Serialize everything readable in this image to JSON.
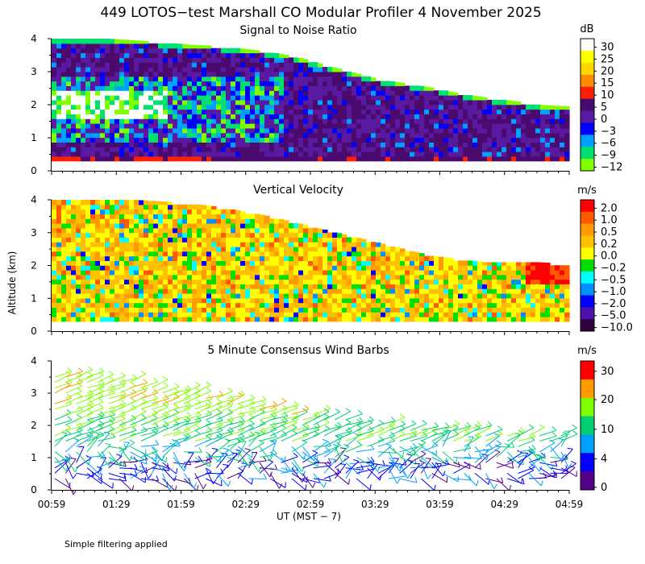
{
  "header": {
    "title": "449 LOTOS−test Marshall CO Modular Profiler  4 November 2025"
  },
  "footer": {
    "note": "Simple filtering applied"
  },
  "axes": {
    "ylabel": "Altitude (km)",
    "xlabel": "UT  (MST − 7)"
  },
  "chart_data": [
    {
      "type": "heatmap",
      "title": "Signal to Noise Ratio",
      "xlabel": "UT  (MST − 7)",
      "ylabel": "Altitude (km)",
      "x_ticks": [
        "00:59",
        "01:29",
        "01:59",
        "02:29",
        "02:59",
        "03:29",
        "03:59",
        "04:29",
        "04:59"
      ],
      "y_ticks": [
        0,
        1,
        2,
        3,
        4
      ],
      "ylim": [
        0,
        4
      ],
      "colorbar": {
        "unit": "dB",
        "labels": [
          "30",
          "25",
          "20",
          "15",
          "10",
          "5",
          "0",
          "−3",
          "−6",
          "−9",
          "−12"
        ],
        "colors": [
          "#ffffff",
          "#ffff00",
          "#ffd700",
          "#ff8c00",
          "#ff2000",
          "#4a0a6e",
          "#5a1aa0",
          "#0000ff",
          "#00a0ff",
          "#00e070",
          "#7fff00"
        ]
      },
      "data_top_km": [
        4.0,
        4.0,
        4.0,
        3.95,
        3.9,
        3.82,
        3.78,
        3.7,
        3.6,
        3.45,
        3.22,
        3.0,
        2.78,
        2.65,
        2.52,
        2.35,
        2.22,
        2.12,
        2.0,
        1.95
      ],
      "data_bottom_km": 0.3
    },
    {
      "type": "heatmap",
      "title": "Vertical Velocity",
      "xlabel": "UT  (MST − 7)",
      "ylabel": "Altitude (km)",
      "x_ticks": [
        "00:59",
        "01:29",
        "01:59",
        "02:29",
        "02:59",
        "03:29",
        "03:59",
        "04:29",
        "04:59"
      ],
      "y_ticks": [
        0,
        1,
        2,
        3,
        4
      ],
      "ylim": [
        0,
        4
      ],
      "colorbar": {
        "unit": "m/s",
        "labels": [
          "2.0",
          "1.0",
          "0.5",
          "0.2",
          "0.0",
          "−0.2",
          "−0.5",
          "−1.0",
          "−2.0",
          "−5.0",
          "−10.0"
        ],
        "colors": [
          "#ff0000",
          "#ff5a00",
          "#ff9a00",
          "#ffc000",
          "#ffff00",
          "#00e000",
          "#00ffff",
          "#0090ff",
          "#0000ff",
          "#4a14a8",
          "#300040"
        ]
      },
      "data_top_km": [
        4.0,
        4.0,
        4.0,
        4.0,
        3.95,
        3.9,
        3.8,
        3.65,
        3.5,
        3.3,
        3.1,
        2.9,
        2.7,
        2.5,
        2.3,
        2.2,
        2.1,
        2.1,
        2.1,
        2.05
      ],
      "data_bottom_km": 0.3
    },
    {
      "type": "scatter",
      "title": "5 Minute Consensus Wind Barbs",
      "xlabel": "UT  (MST − 7)",
      "ylabel": "Altitude (km)",
      "x_ticks": [
        "00:59",
        "01:29",
        "01:59",
        "02:29",
        "02:59",
        "03:29",
        "03:59",
        "04:29",
        "04:59"
      ],
      "y_ticks": [
        0,
        1,
        2,
        3,
        4
      ],
      "ylim": [
        0,
        4
      ],
      "colorbar": {
        "unit": "m/s",
        "labels": [
          "30",
          "20",
          "10",
          "4",
          "0"
        ],
        "colors": [
          "#ff0000",
          "#ff9a00",
          "#7fff00",
          "#00d070",
          "#00a0ff",
          "#0000ff",
          "#550088"
        ]
      },
      "data_top_km": [
        3.6,
        3.55,
        3.45,
        3.35,
        3.25,
        3.1,
        2.95,
        2.8,
        2.6,
        2.45,
        2.3,
        2.2,
        2.1,
        2.0,
        1.95,
        1.9,
        1.85,
        1.8,
        1.75,
        1.7
      ],
      "data_bottom_km": 0.35
    }
  ]
}
